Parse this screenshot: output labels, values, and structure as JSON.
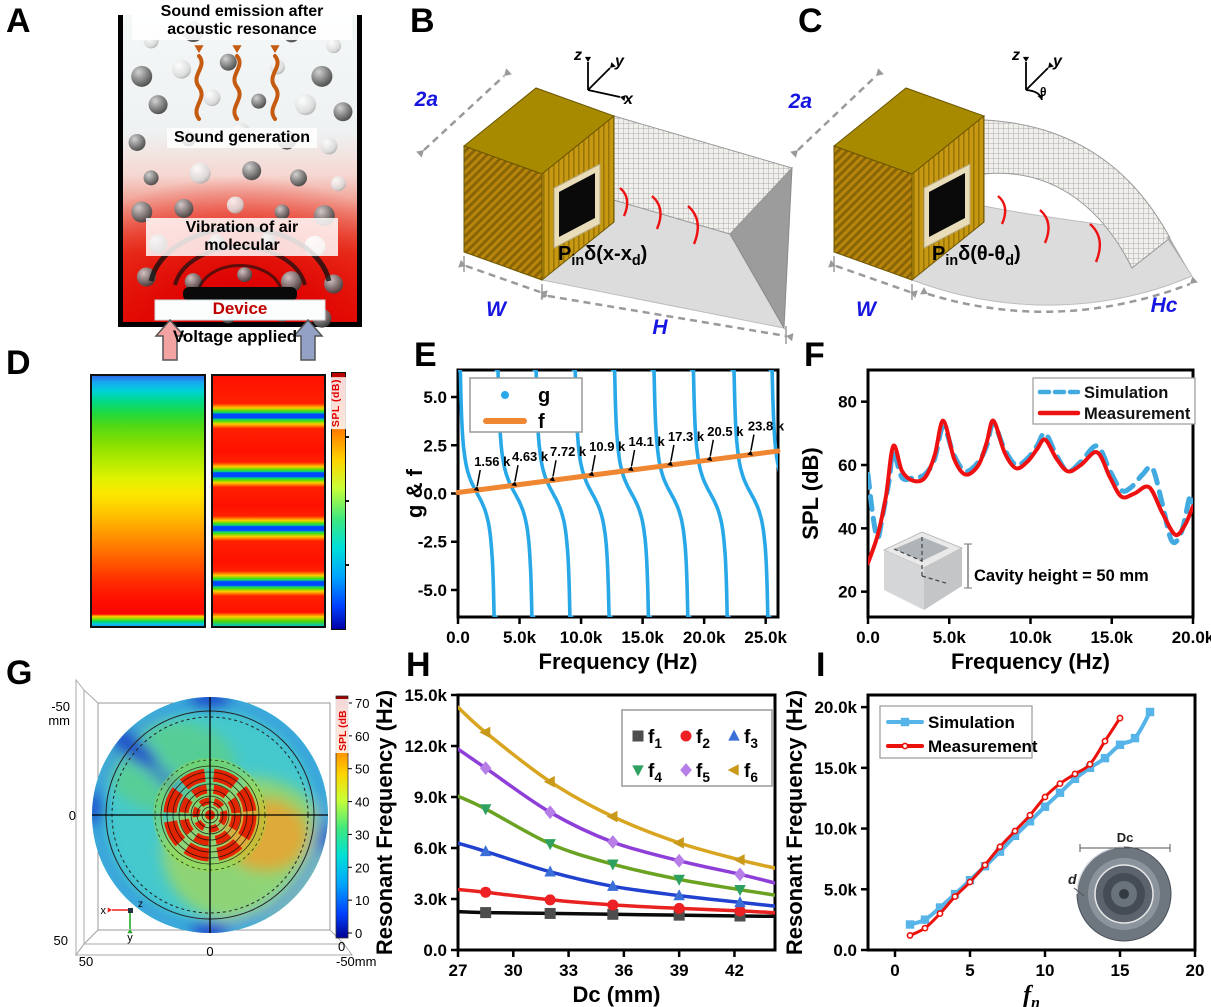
{
  "panels": {
    "A": {
      "letter": "A",
      "label_top": "Sound emission after acoustic resonance",
      "label_mid": "Sound generation",
      "label_vib": "Vibration of air molecular",
      "label_device": "Device",
      "label_voltage": "Voltage applied"
    },
    "B": {
      "letter": "B",
      "dim_depth": "2a",
      "dim_width": "W",
      "dim_length": "H",
      "formula": "P_{in}δ(x-x_{d})",
      "axis_up": "z",
      "axis_diag": "y",
      "axis_third": "x"
    },
    "C": {
      "letter": "C",
      "dim_depth": "2a",
      "dim_width": "W",
      "dim_length": "Hc",
      "formula": "P_{in}δ(θ-θ_{d})",
      "axis_up": "z",
      "axis_diag": "y",
      "axis_third": "θ"
    },
    "D": {
      "letter": "D",
      "colorbar_label": "SPL (dB)"
    },
    "E": {
      "letter": "E"
    },
    "F": {
      "letter": "F"
    },
    "G": {
      "letter": "G",
      "colorbar_label": "SPL (dB",
      "colorbar_ticks": [
        70,
        60,
        50,
        40,
        30,
        20,
        10,
        0
      ],
      "axis": {
        "top_left": "-50",
        "top_left_unit": "mm",
        "left_mid": "0",
        "left_bottom": "50",
        "bottom_left": "50",
        "bottom_mid": "0",
        "right_zero": "0",
        "bottom_right": "-50mm"
      },
      "triad": {
        "x": "x",
        "y": "y",
        "z": "z"
      }
    },
    "H": {
      "letter": "H"
    },
    "I": {
      "letter": "I"
    }
  },
  "chart_data": [
    {
      "panel": "E",
      "type": "line",
      "xlabel": "Frequency (Hz)",
      "ylabel": "g & f",
      "xlim": [
        0,
        26000
      ],
      "ylim": [
        -6.4,
        6.4
      ],
      "xticks": [
        {
          "v": 0,
          "l": "0.0"
        },
        {
          "v": 5000,
          "l": "5.0k"
        },
        {
          "v": 10000,
          "l": "10.0k"
        },
        {
          "v": 15000,
          "l": "15.0k"
        },
        {
          "v": 20000,
          "l": "20.0k"
        },
        {
          "v": 25000,
          "l": "25.0k"
        }
      ],
      "yticks": [
        {
          "v": 5,
          "l": "5.0"
        },
        {
          "v": 2.5,
          "l": "2.5"
        },
        {
          "v": 0,
          "l": "0.0"
        },
        {
          "v": -2.5,
          "l": "-2.5"
        },
        {
          "v": -5,
          "l": "-5.0"
        }
      ],
      "legend": [
        {
          "label": "g",
          "color": "#29a8e8",
          "style": "dot"
        },
        {
          "label": "f",
          "color": "#ef8632",
          "style": "line"
        }
      ],
      "g_curve": {
        "color": "#29a8e8",
        "period": 3090,
        "crossings": [
          1560,
          4630,
          7720,
          10900,
          14100,
          17300,
          20500,
          23800,
          26900
        ],
        "scale": 1.15,
        "clip": 6.4
      },
      "f_line": {
        "color": "#ef8632",
        "x": [
          0,
          26000
        ],
        "y": [
          0.05,
          2.2
        ]
      },
      "annotations": [
        "1.56 k",
        "4.63 k",
        "7.72 k",
        "10.9 k",
        "14.1 k",
        "17.3 k",
        "20.5 k",
        "23.8 k"
      ]
    },
    {
      "panel": "F",
      "type": "line",
      "xlabel": "Frequency (Hz)",
      "ylabel": "SPL (dB)",
      "xlim": [
        0,
        20000
      ],
      "ylim": [
        12,
        90
      ],
      "xticks": [
        {
          "v": 0,
          "l": "0.0"
        },
        {
          "v": 5000,
          "l": "5.0k"
        },
        {
          "v": 10000,
          "l": "10.0k"
        },
        {
          "v": 15000,
          "l": "15.0k"
        },
        {
          "v": 20000,
          "l": "20.0k"
        }
      ],
      "yticks": [
        {
          "v": 20,
          "l": "20"
        },
        {
          "v": 40,
          "l": "40"
        },
        {
          "v": 60,
          "l": "60"
        },
        {
          "v": 80,
          "l": "80"
        }
      ],
      "series": [
        {
          "name": "Simulation",
          "color": "#41aae1",
          "dash": [
            13,
            9
          ],
          "width": 5,
          "points": [
            [
              0,
              57
            ],
            [
              300,
              44
            ],
            [
              600,
              37
            ],
            [
              900,
              44
            ],
            [
              1300,
              55
            ],
            [
              1560,
              64
            ],
            [
              2100,
              56
            ],
            [
              2800,
              56
            ],
            [
              3500,
              57
            ],
            [
              4100,
              62
            ],
            [
              4630,
              72
            ],
            [
              5300,
              63
            ],
            [
              6000,
              58
            ],
            [
              6800,
              61
            ],
            [
              7300,
              66
            ],
            [
              7720,
              73
            ],
            [
              8400,
              65
            ],
            [
              9100,
              60
            ],
            [
              9800,
              62
            ],
            [
              10400,
              66
            ],
            [
              10900,
              70
            ],
            [
              11600,
              63
            ],
            [
              12300,
              58
            ],
            [
              13100,
              61
            ],
            [
              14100,
              66
            ],
            [
              14900,
              58
            ],
            [
              15600,
              52
            ],
            [
              16200,
              53
            ],
            [
              16900,
              57
            ],
            [
              17500,
              59
            ],
            [
              18100,
              48
            ],
            [
              18700,
              36
            ],
            [
              19300,
              39
            ],
            [
              19800,
              50
            ],
            [
              20000,
              48
            ]
          ]
        },
        {
          "name": "Measurement",
          "color": "#ee1111",
          "width": 4,
          "points": [
            [
              0,
              29
            ],
            [
              600,
              38
            ],
            [
              1100,
              50
            ],
            [
              1560,
              66
            ],
            [
              2100,
              58
            ],
            [
              2800,
              55
            ],
            [
              3500,
              56
            ],
            [
              4100,
              63
            ],
            [
              4630,
              74
            ],
            [
              5300,
              62
            ],
            [
              6000,
              57
            ],
            [
              6800,
              60
            ],
            [
              7300,
              67
            ],
            [
              7720,
              74
            ],
            [
              8400,
              64
            ],
            [
              9100,
              59
            ],
            [
              9800,
              61
            ],
            [
              10400,
              65
            ],
            [
              10900,
              68
            ],
            [
              11600,
              62
            ],
            [
              12300,
              58
            ],
            [
              13100,
              60
            ],
            [
              14100,
              64
            ],
            [
              14900,
              56
            ],
            [
              15600,
              50
            ],
            [
              16400,
              51
            ],
            [
              17300,
              53
            ],
            [
              18100,
              45
            ],
            [
              18900,
              38
            ],
            [
              19500,
              41
            ],
            [
              20000,
              47
            ]
          ]
        }
      ],
      "inset_text": "Cavity height = 50 mm"
    },
    {
      "panel": "H",
      "type": "scatter-line",
      "xlabel": "Dc (mm)",
      "ylabel": "Resonant Frequency (Hz)",
      "xlim": [
        27,
        44.2
      ],
      "ylim": [
        0,
        15000
      ],
      "xticks": [
        {
          "v": 27,
          "l": "27"
        },
        {
          "v": 30,
          "l": "30"
        },
        {
          "v": 33,
          "l": "33"
        },
        {
          "v": 36,
          "l": "36"
        },
        {
          "v": 39,
          "l": "39"
        },
        {
          "v": 42,
          "l": "42"
        }
      ],
      "yticks": [
        {
          "v": 0,
          "l": "0.0"
        },
        {
          "v": 3000,
          "l": "3.0k"
        },
        {
          "v": 6000,
          "l": "6.0k"
        },
        {
          "v": 9000,
          "l": "9.0k"
        },
        {
          "v": 12000,
          "l": "12.0k"
        },
        {
          "v": 15000,
          "l": "15.0k"
        }
      ],
      "x_points": [
        28.5,
        32,
        35.4,
        39,
        42.3
      ],
      "series": [
        {
          "name": "f_{1}",
          "marker": "square",
          "mcolor": "#4d4d4d",
          "lcolor": "#0a0a0a",
          "y": [
            2200,
            2150,
            2100,
            2050,
            2000
          ],
          "ends": [
            [
              27,
              2260
            ],
            [
              44.2,
              1980
            ]
          ]
        },
        {
          "name": "f_{2}",
          "marker": "circle",
          "mcolor": "#ed2024",
          "lcolor": "#e8221f",
          "y": [
            3400,
            2950,
            2650,
            2450,
            2300
          ],
          "ends": [
            [
              27,
              3560
            ],
            [
              44.2,
              2190
            ]
          ]
        },
        {
          "name": "f_{3}",
          "marker": "triangle-up",
          "mcolor": "#3a6fd8",
          "lcolor": "#2141cf",
          "y": [
            5800,
            4600,
            3750,
            3200,
            2800
          ],
          "ends": [
            [
              27,
              6280
            ],
            [
              44.2,
              2580
            ]
          ]
        },
        {
          "name": "f_{4}",
          "marker": "triangle-down",
          "mcolor": "#2ea05f",
          "lcolor": "#6aa221",
          "y": [
            8300,
            6250,
            5050,
            4150,
            3550
          ],
          "ends": [
            [
              27,
              9050
            ],
            [
              44.2,
              3230
            ]
          ]
        },
        {
          "name": "f_{5}",
          "marker": "diamond",
          "mcolor": "#b77ee8",
          "lcolor": "#8e3fd8",
          "y": [
            10700,
            8100,
            6350,
            5250,
            4450
          ],
          "ends": [
            [
              27,
              11820
            ],
            [
              44.2,
              3940
            ]
          ]
        },
        {
          "name": "f_{6}",
          "marker": "triangle-left",
          "mcolor": "#c9991a",
          "lcolor": "#d9a520",
          "y": [
            12800,
            9900,
            7850,
            6300,
            5300
          ],
          "ends": [
            [
              27,
              14280
            ],
            [
              44.2,
              4820
            ]
          ]
        }
      ]
    },
    {
      "panel": "I",
      "type": "scatter-line",
      "xlabel": "f_{n}",
      "xlabel_italic": true,
      "ylabel": "Resonant Frequency (Hz)",
      "xlim": [
        -1.8,
        20
      ],
      "ylim": [
        0,
        21000
      ],
      "xticks": [
        {
          "v": 0,
          "l": "0"
        },
        {
          "v": 5,
          "l": "5"
        },
        {
          "v": 10,
          "l": "10"
        },
        {
          "v": 15,
          "l": "15"
        },
        {
          "v": 20,
          "l": "20"
        }
      ],
      "yticks": [
        {
          "v": 0,
          "l": "0.0"
        },
        {
          "v": 5000,
          "l": "5.0k"
        },
        {
          "v": 10000,
          "l": "10.0k"
        },
        {
          "v": 15000,
          "l": "15.0k"
        },
        {
          "v": 20000,
          "l": "20.0k"
        }
      ],
      "series": [
        {
          "name": "Simulation",
          "color": "#56b4e9",
          "marker": "square",
          "width": 4,
          "points": [
            [
              1,
              2100
            ],
            [
              2,
              2500
            ],
            [
              3,
              3500
            ],
            [
              4,
              4600
            ],
            [
              5,
              5750
            ],
            [
              6,
              6900
            ],
            [
              7,
              8100
            ],
            [
              8,
              9400
            ],
            [
              9,
              10600
            ],
            [
              10,
              11800
            ],
            [
              11,
              12950
            ],
            [
              12,
              14100
            ],
            [
              13,
              15000
            ],
            [
              14,
              15800
            ],
            [
              15,
              16900
            ],
            [
              16,
              17450
            ],
            [
              17,
              19600
            ]
          ]
        },
        {
          "name": "Measurement",
          "color": "#ea120b",
          "marker": "circle-open",
          "width": 3,
          "points": [
            [
              1,
              1200
            ],
            [
              2,
              1800
            ],
            [
              3,
              3000
            ],
            [
              4,
              4400
            ],
            [
              5,
              5600
            ],
            [
              6,
              7000
            ],
            [
              7,
              8500
            ],
            [
              8,
              9800
            ],
            [
              9,
              11100
            ],
            [
              10,
              12600
            ],
            [
              11,
              13700
            ],
            [
              12,
              14500
            ],
            [
              13,
              15300
            ],
            [
              14,
              17200
            ],
            [
              15,
              19100
            ]
          ]
        }
      ],
      "inset_labels": {
        "diameter": "Dc",
        "groove": "d"
      }
    }
  ]
}
